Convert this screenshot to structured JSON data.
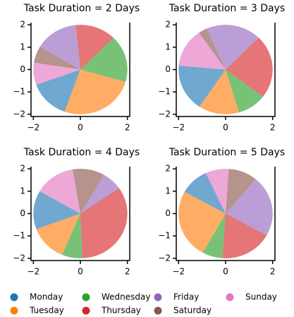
{
  "chart_data": [
    {
      "type": "pie",
      "title": "Task Duration = 2 Days",
      "categories": [
        "Monday",
        "Tuesday",
        "Wednesday",
        "Thursday",
        "Friday",
        "Saturday",
        "Sunday"
      ],
      "values": [
        14,
        26,
        17,
        14,
        15,
        6,
        8
      ],
      "colors": [
        "#1f77b4",
        "#ff7f0e",
        "#2ca02c",
        "#d62728",
        "#9467bd",
        "#8c564b",
        "#e377c2"
      ],
      "startangle": 200,
      "radius": 2,
      "xlim": [
        -2.1,
        2.1
      ],
      "ylim": [
        -2.1,
        2.1
      ],
      "xticks": [
        {
          "value": -2,
          "label": "−2"
        },
        0,
        2
      ],
      "yticks": [
        {
          "value": -2,
          "label": "−2"
        },
        {
          "value": -1,
          "label": "−1"
        },
        0,
        1,
        2
      ]
    },
    {
      "type": "pie",
      "title": "Task Duration = 3 Days",
      "categories": [
        "Monday",
        "Tuesday",
        "Wednesday",
        "Thursday",
        "Friday",
        "Saturday",
        "Sunday"
      ],
      "values": [
        17,
        14,
        10,
        23,
        19,
        3,
        14
      ],
      "colors": [
        "#1f77b4",
        "#ff7f0e",
        "#2ca02c",
        "#d62728",
        "#9467bd",
        "#8c564b",
        "#e377c2"
      ],
      "startangle": 175,
      "radius": 2,
      "xlim": [
        -2.1,
        2.1
      ],
      "ylim": [
        -2.1,
        2.1
      ],
      "xticks": [
        {
          "value": -2,
          "label": "−2"
        },
        0,
        2
      ],
      "yticks": [
        {
          "value": -2,
          "label": "−2"
        },
        {
          "value": -1,
          "label": "−1"
        },
        0,
        1,
        2
      ]
    },
    {
      "type": "pie",
      "title": "Task Duration = 4 Days",
      "categories": [
        "Monday",
        "Tuesday",
        "Wednesday",
        "Thursday",
        "Friday",
        "Saturday",
        "Sunday"
      ],
      "values": [
        14,
        13,
        7,
        34,
        7,
        11,
        14
      ],
      "colors": [
        "#1f77b4",
        "#ff7f0e",
        "#2ca02c",
        "#d62728",
        "#9467bd",
        "#8c564b",
        "#e377c2"
      ],
      "startangle": 150,
      "radius": 2,
      "xlim": [
        -2.1,
        2.1
      ],
      "ylim": [
        -2.1,
        2.1
      ],
      "xticks": [
        {
          "value": -2,
          "label": "−2"
        },
        0,
        2
      ],
      "yticks": [
        {
          "value": -2,
          "label": "−2"
        },
        {
          "value": -1,
          "label": "−1"
        },
        0,
        1,
        2
      ]
    },
    {
      "type": "pie",
      "title": "Task Duration = 5 Days",
      "categories": [
        "Monday",
        "Tuesday",
        "Wednesday",
        "Thursday",
        "Friday",
        "Saturday",
        "Sunday"
      ],
      "values": [
        10,
        25,
        7,
        18,
        22,
        10,
        8
      ],
      "colors": [
        "#1f77b4",
        "#ff7f0e",
        "#2ca02c",
        "#d62728",
        "#9467bd",
        "#8c564b",
        "#e377c2"
      ],
      "startangle": 115,
      "radius": 2,
      "xlim": [
        -2.1,
        2.1
      ],
      "ylim": [
        -2.1,
        2.1
      ],
      "xticks": [
        {
          "value": -2,
          "label": "−2"
        },
        0,
        2
      ],
      "yticks": [
        {
          "value": -2,
          "label": "−2"
        },
        {
          "value": -1,
          "label": "−1"
        },
        0,
        1,
        2
      ]
    }
  ]
}
